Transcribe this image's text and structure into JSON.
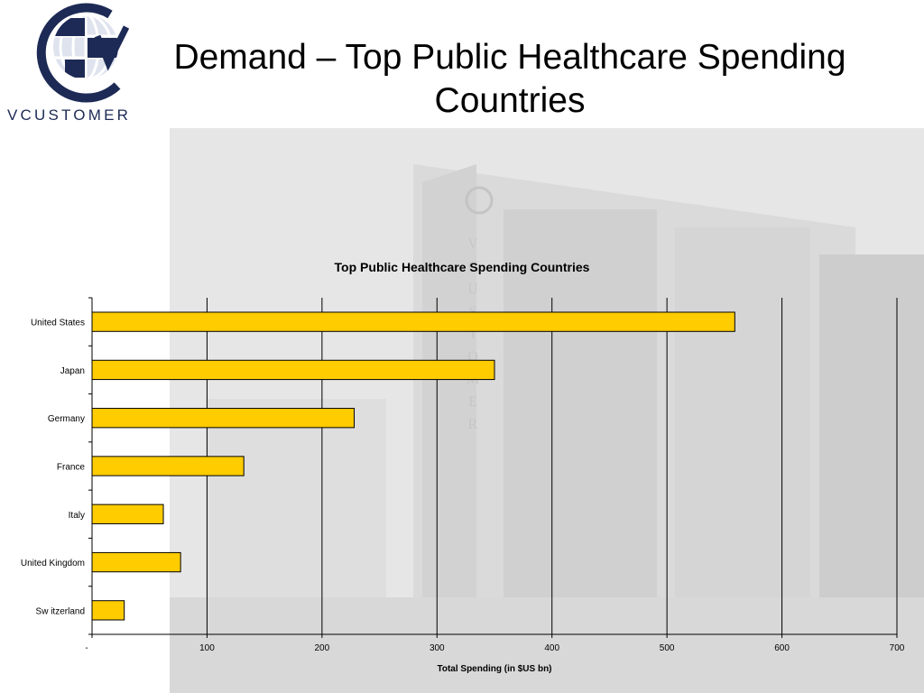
{
  "slide": {
    "title": "Demand – Top Public Healthcare Spending Countries",
    "logo_text": "VCUSTOMER",
    "backdrop_text": "VCUSTOMER"
  },
  "colors": {
    "bar_fill": "#FFCC00",
    "bar_stroke": "#000000",
    "logo_blue": "#1d2a55",
    "backdrop": "#e4e4e4"
  },
  "chart_data": {
    "type": "bar",
    "orientation": "horizontal",
    "title": "Top Public Healthcare Spending Countries",
    "xlabel": "Total Spending (in $US bn)",
    "ylabel": "",
    "categories": [
      "United States",
      "Japan",
      "Germany",
      "France",
      "Italy",
      "United Kingdom",
      "Sw itzerland"
    ],
    "values": [
      559,
      350,
      228,
      132,
      62,
      77,
      28
    ],
    "xlim": [
      0,
      700
    ],
    "xticks": [
      "-",
      "100",
      "200",
      "300",
      "400",
      "500",
      "600",
      "700"
    ],
    "grid": "vertical"
  }
}
